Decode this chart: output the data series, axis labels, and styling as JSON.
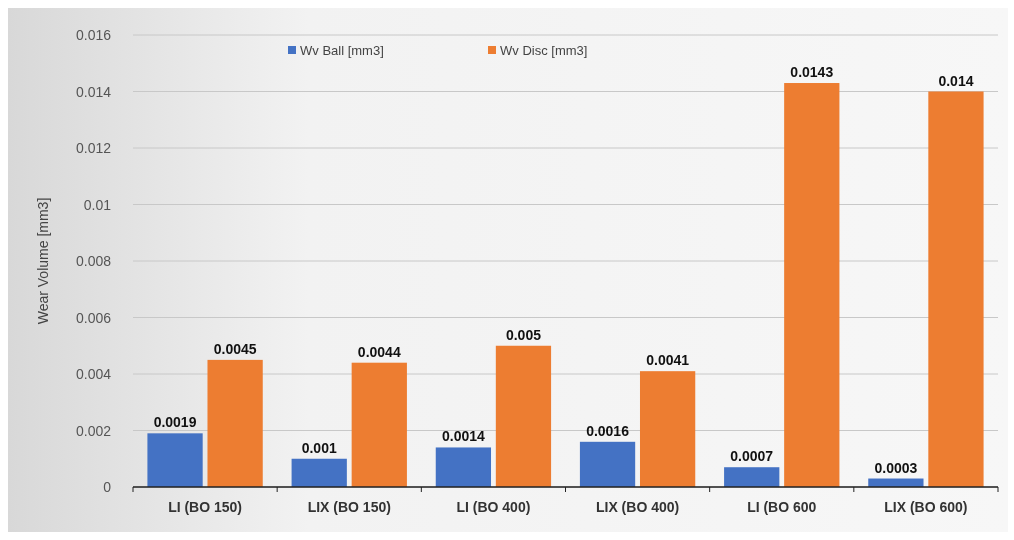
{
  "chart_data": {
    "type": "bar",
    "ylabel": "Wear Volume [mm3]",
    "categories": [
      "LI (BO 150)",
      "LIX (BO 150)",
      "LI (BO 400)",
      "LIX (BO 400)",
      "LI (BO 600",
      "LIX (BO 600)"
    ],
    "series": [
      {
        "name": "Wv Ball [mm3]",
        "color": "#4472c4",
        "values": [
          0.0019,
          0.001,
          0.0014,
          0.0016,
          0.0007,
          0.0003
        ]
      },
      {
        "name": "Wv Disc [mm3]",
        "color": "#ed7d31",
        "values": [
          0.0045,
          0.0044,
          0.005,
          0.0041,
          0.0143,
          0.014
        ]
      }
    ],
    "ylim": [
      0,
      0.016
    ],
    "yticks": [
      0,
      0.002,
      0.004,
      0.006,
      0.008,
      0.01,
      0.012,
      0.014,
      0.016
    ],
    "grid": "y",
    "legend": "top",
    "data_labels": true
  }
}
